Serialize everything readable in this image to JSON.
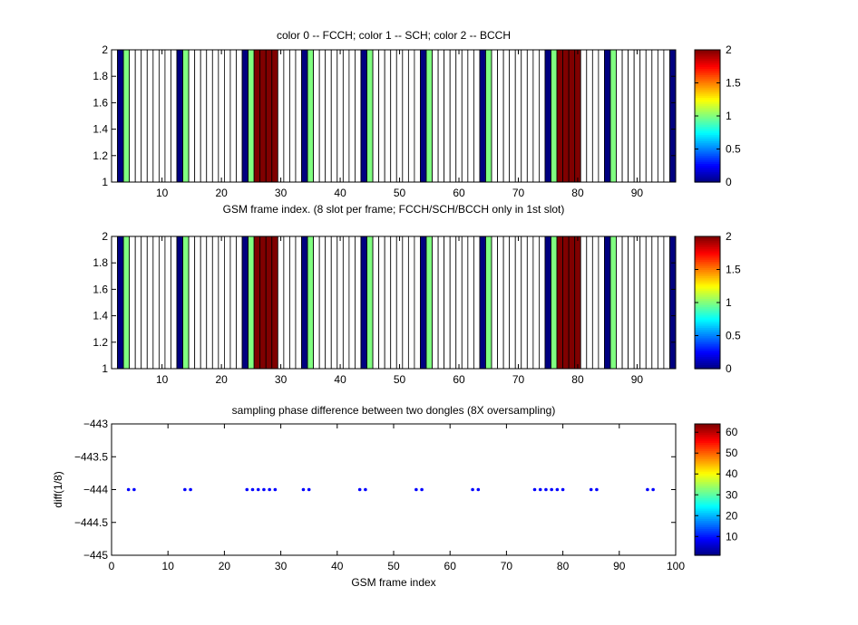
{
  "chart_data": [
    {
      "type": "heatmap",
      "title": "color 0 -- FCCH; color 1 -- SCH; color 2 -- BCCH",
      "xlabel": "GSM frame index. (8 slot per frame; FCCH/SCH/BCCH only in 1st slot)",
      "ylabel": "",
      "xlim": [
        1.5,
        96.5
      ],
      "ylim": [
        1,
        2
      ],
      "xticks": [
        10,
        20,
        30,
        40,
        50,
        60,
        70,
        80,
        90
      ],
      "xtick_labels": [
        "10",
        "20",
        "30",
        "40",
        "50",
        "60",
        "70",
        "80",
        "90"
      ],
      "yticks": [
        1,
        1.2,
        1.4,
        1.6,
        1.8,
        2
      ],
      "ytick_labels": [
        "1",
        "1.2",
        "1.4",
        "1.6",
        "1.8",
        "2"
      ],
      "colorbar": {
        "clim": [
          0,
          2
        ],
        "ticks": [
          0,
          0.5,
          1,
          1.5,
          2
        ],
        "tick_labels": [
          "0",
          "0.5",
          "1",
          "1.5",
          "2"
        ],
        "colormap": "jet"
      },
      "frames": {
        "start": 2,
        "end": 96,
        "empty_color": "#ffffff"
      },
      "cells": [
        {
          "x": 3,
          "value": 0
        },
        {
          "x": 4,
          "value": 1
        },
        {
          "x": 13,
          "value": 0
        },
        {
          "x": 14,
          "value": 1
        },
        {
          "x": 24,
          "value": 0
        },
        {
          "x": 25,
          "value": 1
        },
        {
          "x": 26,
          "value": 2
        },
        {
          "x": 27,
          "value": 2
        },
        {
          "x": 28,
          "value": 2
        },
        {
          "x": 29,
          "value": 2
        },
        {
          "x": 34,
          "value": 0
        },
        {
          "x": 35,
          "value": 1
        },
        {
          "x": 44,
          "value": 0
        },
        {
          "x": 45,
          "value": 1
        },
        {
          "x": 54,
          "value": 0
        },
        {
          "x": 55,
          "value": 1
        },
        {
          "x": 64,
          "value": 0
        },
        {
          "x": 65,
          "value": 1
        },
        {
          "x": 75,
          "value": 0
        },
        {
          "x": 76,
          "value": 1
        },
        {
          "x": 77,
          "value": 2
        },
        {
          "x": 78,
          "value": 2
        },
        {
          "x": 79,
          "value": 2
        },
        {
          "x": 80,
          "value": 2
        },
        {
          "x": 85,
          "value": 0
        },
        {
          "x": 86,
          "value": 1
        },
        {
          "x": 96,
          "value": 0
        }
      ]
    },
    {
      "type": "heatmap",
      "title": "",
      "xlabel": "",
      "ylabel": "",
      "xlim": [
        1.5,
        96.5
      ],
      "ylim": [
        1,
        2
      ],
      "xticks": [
        10,
        20,
        30,
        40,
        50,
        60,
        70,
        80,
        90
      ],
      "xtick_labels": [
        "10",
        "20",
        "30",
        "40",
        "50",
        "60",
        "70",
        "80",
        "90"
      ],
      "yticks": [
        1,
        1.2,
        1.4,
        1.6,
        1.8,
        2
      ],
      "ytick_labels": [
        "1",
        "1.2",
        "1.4",
        "1.6",
        "1.8",
        "2"
      ],
      "colorbar": {
        "clim": [
          0,
          2
        ],
        "ticks": [
          0,
          0.5,
          1,
          1.5,
          2
        ],
        "tick_labels": [
          "0",
          "0.5",
          "1",
          "1.5",
          "2"
        ],
        "colormap": "jet"
      },
      "frames": {
        "start": 2,
        "end": 96,
        "empty_color": "#ffffff"
      },
      "cells": [
        {
          "x": 3,
          "value": 0
        },
        {
          "x": 4,
          "value": 1
        },
        {
          "x": 13,
          "value": 0
        },
        {
          "x": 14,
          "value": 1
        },
        {
          "x": 24,
          "value": 0
        },
        {
          "x": 25,
          "value": 1
        },
        {
          "x": 26,
          "value": 2
        },
        {
          "x": 27,
          "value": 2
        },
        {
          "x": 28,
          "value": 2
        },
        {
          "x": 29,
          "value": 2
        },
        {
          "x": 34,
          "value": 0
        },
        {
          "x": 35,
          "value": 1
        },
        {
          "x": 44,
          "value": 0
        },
        {
          "x": 45,
          "value": 1
        },
        {
          "x": 54,
          "value": 0
        },
        {
          "x": 55,
          "value": 1
        },
        {
          "x": 64,
          "value": 0
        },
        {
          "x": 65,
          "value": 1
        },
        {
          "x": 75,
          "value": 0
        },
        {
          "x": 76,
          "value": 1
        },
        {
          "x": 77,
          "value": 2
        },
        {
          "x": 78,
          "value": 2
        },
        {
          "x": 79,
          "value": 2
        },
        {
          "x": 80,
          "value": 2
        },
        {
          "x": 85,
          "value": 0
        },
        {
          "x": 86,
          "value": 1
        },
        {
          "x": 96,
          "value": 0
        }
      ]
    },
    {
      "type": "scatter",
      "title": "sampling phase difference between two dongles (8X oversampling)",
      "xlabel": "GSM frame index",
      "ylabel": "diff(1/8)",
      "xlim": [
        0,
        100
      ],
      "ylim": [
        -445,
        -443
      ],
      "xticks": [
        0,
        10,
        20,
        30,
        40,
        50,
        60,
        70,
        80,
        90,
        100
      ],
      "xtick_labels": [
        "0",
        "10",
        "20",
        "30",
        "40",
        "50",
        "60",
        "70",
        "80",
        "90",
        "100"
      ],
      "yticks": [
        -445,
        -444.5,
        -444,
        -443.5,
        -443
      ],
      "ytick_labels": [
        "−445",
        "−444.5",
        "−444",
        "−443.5",
        "−443"
      ],
      "colorbar": {
        "clim": [
          1,
          64
        ],
        "ticks": [
          10,
          20,
          30,
          40,
          50,
          60
        ],
        "tick_labels": [
          "10",
          "20",
          "30",
          "40",
          "50",
          "60"
        ],
        "colormap": "jet"
      },
      "marker_color": "#0000ff",
      "x": [
        3,
        4,
        13,
        14,
        24,
        25,
        26,
        27,
        28,
        29,
        34,
        35,
        44,
        45,
        54,
        55,
        64,
        65,
        75,
        76,
        77,
        78,
        79,
        80,
        85,
        86,
        95,
        96
      ],
      "y": [
        -444,
        -444,
        -444,
        -444,
        -444,
        -444,
        -444,
        -444,
        -444,
        -444,
        -444,
        -444,
        -444,
        -444,
        -444,
        -444,
        -444,
        -444,
        -444,
        -444,
        -444,
        -444,
        -444,
        -444,
        -444,
        -444,
        -444,
        -444
      ]
    }
  ]
}
